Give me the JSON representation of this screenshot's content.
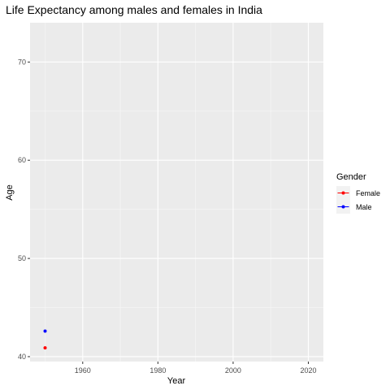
{
  "chart_data": {
    "type": "line",
    "title": "Life Expectancy among males and females in India",
    "xlabel": "Year",
    "ylabel": "Age",
    "xlim": [
      1946,
      2024
    ],
    "ylim": [
      39.5,
      74.0
    ],
    "x_ticks": [
      1960,
      1980,
      2000,
      2020
    ],
    "y_ticks": [
      40,
      50,
      60,
      70
    ],
    "grid": true,
    "legend": {
      "title": "Gender",
      "position": "right"
    },
    "series": [
      {
        "name": "Female",
        "color": "#ff0000",
        "points": [
          {
            "x": 1950,
            "y": 40.9
          }
        ]
      },
      {
        "name": "Male",
        "color": "#0000ff",
        "points": [
          {
            "x": 1950,
            "y": 42.6
          }
        ]
      }
    ]
  }
}
